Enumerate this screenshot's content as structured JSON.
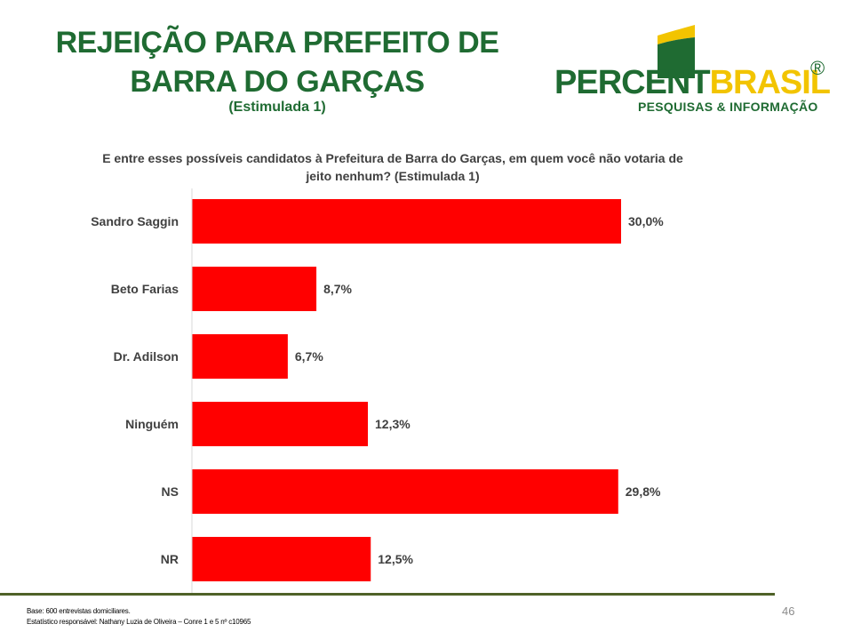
{
  "header": {
    "title_line1": "REJEIÇÃO PARA PREFEITO DE",
    "title_line2": "BARRA DO GARÇAS",
    "subtitle": "(Estimulada 1)"
  },
  "logo": {
    "word_part1": "PERCENT",
    "word_part2": "BRASIL",
    "registered": "®",
    "tagline": "PESQUISAS & INFORMAÇÃO"
  },
  "question": {
    "line1": "E entre esses possíveis candidatos à Prefeitura de Barra do Garças, em quem você não votaria de",
    "line2": "jeito nenhum? (Estimulada 1)"
  },
  "chart_data": {
    "type": "bar",
    "orientation": "horizontal",
    "categories": [
      "Sandro Saggin",
      "Beto Farias",
      "Dr. Adilson",
      "Ninguém",
      "NS",
      "NR"
    ],
    "values": [
      30.0,
      8.7,
      6.7,
      12.3,
      29.8,
      12.5
    ],
    "value_labels": [
      "30,0%",
      "8,7%",
      "6,7%",
      "12,3%",
      "29,8%",
      "12,5%"
    ],
    "xlim": [
      0,
      40
    ],
    "bar_color": "#ff0000",
    "grid": false,
    "legend": "none"
  },
  "footer": {
    "base": "Base: 600 entrevistas domiciliares.",
    "statistician": "Estatístico responsável: Nathany Luzia de Oliveira – Conre 1 e 5 nº c10965",
    "page_number": "46"
  },
  "colors": {
    "title_green": "#1f6b32",
    "logo_yellow": "#f2c400",
    "bar_red": "#ff0000",
    "footer_line": "#4f6228"
  }
}
